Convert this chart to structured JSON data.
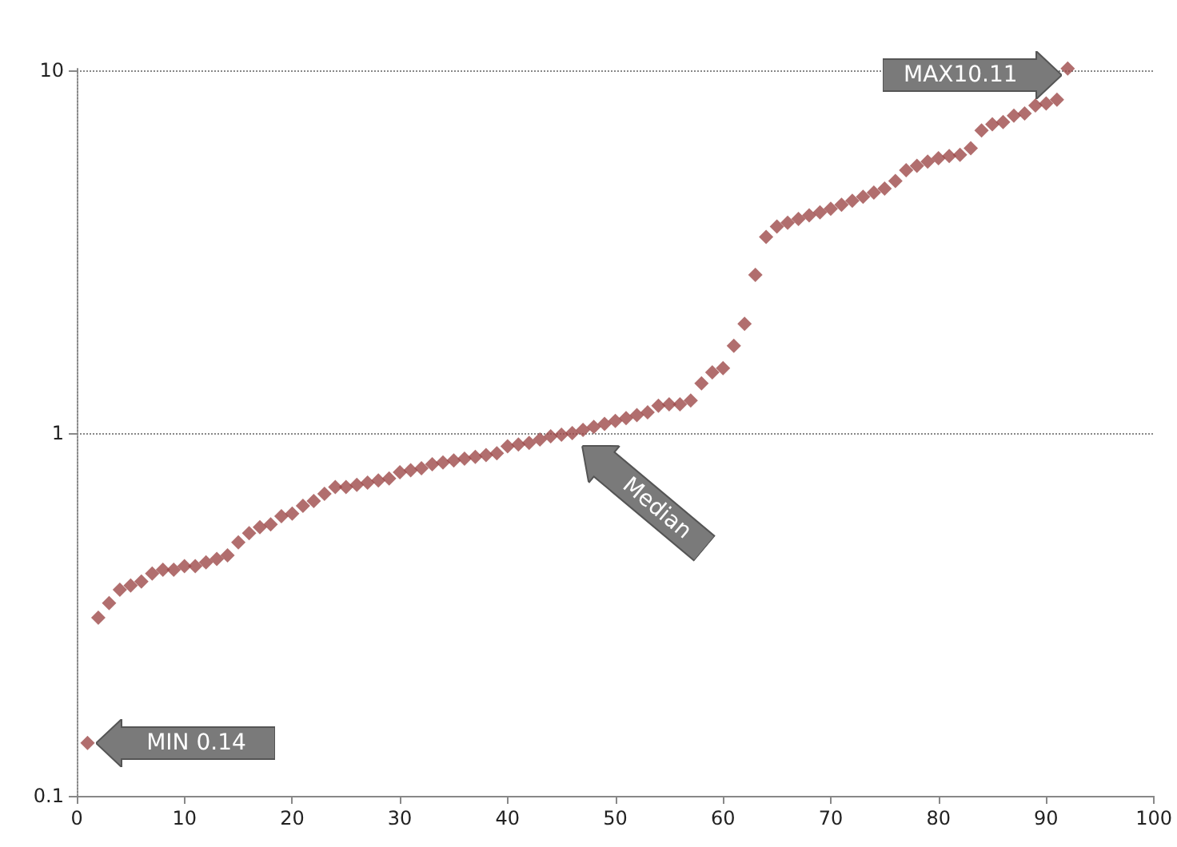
{
  "chart_data": {
    "type": "scatter",
    "x": [
      1,
      2,
      3,
      4,
      5,
      6,
      7,
      8,
      9,
      10,
      11,
      12,
      13,
      14,
      15,
      16,
      17,
      18,
      19,
      20,
      21,
      22,
      23,
      24,
      25,
      26,
      27,
      28,
      29,
      30,
      31,
      32,
      33,
      34,
      35,
      36,
      37,
      38,
      39,
      40,
      41,
      42,
      43,
      44,
      45,
      46,
      47,
      48,
      49,
      50,
      51,
      52,
      53,
      54,
      55,
      56,
      57,
      58,
      59,
      60,
      61,
      62,
      63,
      64,
      65,
      66,
      67,
      68,
      69,
      70,
      71,
      72,
      73,
      74,
      75,
      76,
      77,
      78,
      79,
      80,
      81,
      82,
      83,
      84,
      85,
      86,
      87,
      88,
      89,
      90,
      91,
      92
    ],
    "series": [
      {
        "color": "#9e4a4a",
        "values": [
          0.14,
          0.31,
          0.34,
          0.37,
          0.38,
          0.39,
          0.41,
          0.42,
          0.42,
          0.43,
          0.43,
          0.44,
          0.45,
          0.46,
          0.5,
          0.53,
          0.55,
          0.56,
          0.59,
          0.6,
          0.63,
          0.65,
          0.68,
          0.71,
          0.71,
          0.72,
          0.73,
          0.74,
          0.75,
          0.78,
          0.79,
          0.8,
          0.82,
          0.83,
          0.84,
          0.85,
          0.86,
          0.87,
          0.88,
          0.92,
          0.93,
          0.94,
          0.96,
          0.98,
          0.99,
          1.0,
          1.02,
          1.04,
          1.06,
          1.08,
          1.1,
          1.12,
          1.14,
          1.19,
          1.2,
          1.2,
          1.23,
          1.37,
          1.47,
          1.51,
          1.74,
          2.0,
          2.73,
          3.47,
          3.71,
          3.8,
          3.89,
          3.98,
          4.06,
          4.15,
          4.26,
          4.37,
          4.48,
          4.6,
          4.72,
          4.95,
          5.3,
          5.45,
          5.6,
          5.72,
          5.8,
          5.85,
          6.1,
          6.82,
          7.1,
          7.2,
          7.5,
          7.6,
          8.0,
          8.1,
          8.3,
          10.11
        ]
      }
    ],
    "xlim": [
      0,
      100
    ],
    "xticks": [
      0,
      10,
      20,
      30,
      40,
      50,
      60,
      70,
      80,
      90,
      100
    ],
    "ylim": [
      0.1,
      10.2
    ],
    "yticks": [
      0.1,
      1,
      10
    ],
    "log": true,
    "grid": "y",
    "marker": "diamond",
    "annotations": [
      {
        "text": "MAX10.11",
        "x": 92,
        "y": 10.11
      },
      {
        "text": "Median",
        "x": 46,
        "y": 1.0
      },
      {
        "text": "MIN 0.14",
        "x": 1,
        "y": 0.14
      }
    ]
  }
}
